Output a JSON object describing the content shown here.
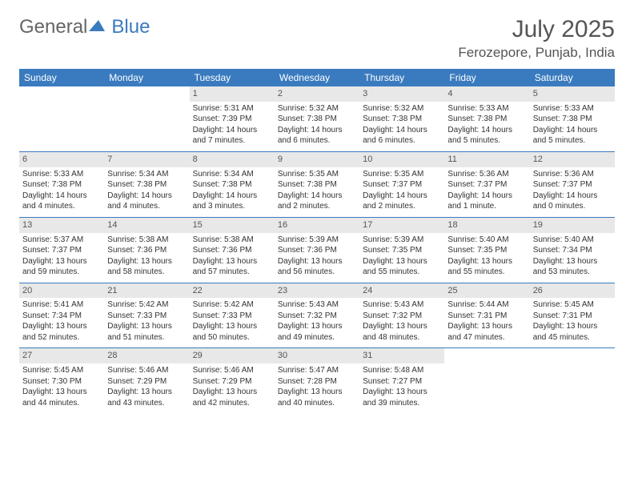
{
  "logo": {
    "general": "General",
    "blue": "Blue"
  },
  "title": "July 2025",
  "location": "Ferozepore, Punjab, India",
  "colors": {
    "header_bg": "#3a7bbf",
    "header_text": "#ffffff",
    "daynum_bg": "#e8e8e8",
    "border": "#3a7bbf",
    "text": "#333333"
  },
  "weekdays": [
    "Sunday",
    "Monday",
    "Tuesday",
    "Wednesday",
    "Thursday",
    "Friday",
    "Saturday"
  ],
  "weeks": [
    [
      {
        "day": "",
        "text": ""
      },
      {
        "day": "",
        "text": ""
      },
      {
        "day": "1",
        "text": "Sunrise: 5:31 AM\nSunset: 7:39 PM\nDaylight: 14 hours and 7 minutes."
      },
      {
        "day": "2",
        "text": "Sunrise: 5:32 AM\nSunset: 7:38 PM\nDaylight: 14 hours and 6 minutes."
      },
      {
        "day": "3",
        "text": "Sunrise: 5:32 AM\nSunset: 7:38 PM\nDaylight: 14 hours and 6 minutes."
      },
      {
        "day": "4",
        "text": "Sunrise: 5:33 AM\nSunset: 7:38 PM\nDaylight: 14 hours and 5 minutes."
      },
      {
        "day": "5",
        "text": "Sunrise: 5:33 AM\nSunset: 7:38 PM\nDaylight: 14 hours and 5 minutes."
      }
    ],
    [
      {
        "day": "6",
        "text": "Sunrise: 5:33 AM\nSunset: 7:38 PM\nDaylight: 14 hours and 4 minutes."
      },
      {
        "day": "7",
        "text": "Sunrise: 5:34 AM\nSunset: 7:38 PM\nDaylight: 14 hours and 4 minutes."
      },
      {
        "day": "8",
        "text": "Sunrise: 5:34 AM\nSunset: 7:38 PM\nDaylight: 14 hours and 3 minutes."
      },
      {
        "day": "9",
        "text": "Sunrise: 5:35 AM\nSunset: 7:38 PM\nDaylight: 14 hours and 2 minutes."
      },
      {
        "day": "10",
        "text": "Sunrise: 5:35 AM\nSunset: 7:37 PM\nDaylight: 14 hours and 2 minutes."
      },
      {
        "day": "11",
        "text": "Sunrise: 5:36 AM\nSunset: 7:37 PM\nDaylight: 14 hours and 1 minute."
      },
      {
        "day": "12",
        "text": "Sunrise: 5:36 AM\nSunset: 7:37 PM\nDaylight: 14 hours and 0 minutes."
      }
    ],
    [
      {
        "day": "13",
        "text": "Sunrise: 5:37 AM\nSunset: 7:37 PM\nDaylight: 13 hours and 59 minutes."
      },
      {
        "day": "14",
        "text": "Sunrise: 5:38 AM\nSunset: 7:36 PM\nDaylight: 13 hours and 58 minutes."
      },
      {
        "day": "15",
        "text": "Sunrise: 5:38 AM\nSunset: 7:36 PM\nDaylight: 13 hours and 57 minutes."
      },
      {
        "day": "16",
        "text": "Sunrise: 5:39 AM\nSunset: 7:36 PM\nDaylight: 13 hours and 56 minutes."
      },
      {
        "day": "17",
        "text": "Sunrise: 5:39 AM\nSunset: 7:35 PM\nDaylight: 13 hours and 55 minutes."
      },
      {
        "day": "18",
        "text": "Sunrise: 5:40 AM\nSunset: 7:35 PM\nDaylight: 13 hours and 55 minutes."
      },
      {
        "day": "19",
        "text": "Sunrise: 5:40 AM\nSunset: 7:34 PM\nDaylight: 13 hours and 53 minutes."
      }
    ],
    [
      {
        "day": "20",
        "text": "Sunrise: 5:41 AM\nSunset: 7:34 PM\nDaylight: 13 hours and 52 minutes."
      },
      {
        "day": "21",
        "text": "Sunrise: 5:42 AM\nSunset: 7:33 PM\nDaylight: 13 hours and 51 minutes."
      },
      {
        "day": "22",
        "text": "Sunrise: 5:42 AM\nSunset: 7:33 PM\nDaylight: 13 hours and 50 minutes."
      },
      {
        "day": "23",
        "text": "Sunrise: 5:43 AM\nSunset: 7:32 PM\nDaylight: 13 hours and 49 minutes."
      },
      {
        "day": "24",
        "text": "Sunrise: 5:43 AM\nSunset: 7:32 PM\nDaylight: 13 hours and 48 minutes."
      },
      {
        "day": "25",
        "text": "Sunrise: 5:44 AM\nSunset: 7:31 PM\nDaylight: 13 hours and 47 minutes."
      },
      {
        "day": "26",
        "text": "Sunrise: 5:45 AM\nSunset: 7:31 PM\nDaylight: 13 hours and 45 minutes."
      }
    ],
    [
      {
        "day": "27",
        "text": "Sunrise: 5:45 AM\nSunset: 7:30 PM\nDaylight: 13 hours and 44 minutes."
      },
      {
        "day": "28",
        "text": "Sunrise: 5:46 AM\nSunset: 7:29 PM\nDaylight: 13 hours and 43 minutes."
      },
      {
        "day": "29",
        "text": "Sunrise: 5:46 AM\nSunset: 7:29 PM\nDaylight: 13 hours and 42 minutes."
      },
      {
        "day": "30",
        "text": "Sunrise: 5:47 AM\nSunset: 7:28 PM\nDaylight: 13 hours and 40 minutes."
      },
      {
        "day": "31",
        "text": "Sunrise: 5:48 AM\nSunset: 7:27 PM\nDaylight: 13 hours and 39 minutes."
      },
      {
        "day": "",
        "text": ""
      },
      {
        "day": "",
        "text": ""
      }
    ]
  ]
}
